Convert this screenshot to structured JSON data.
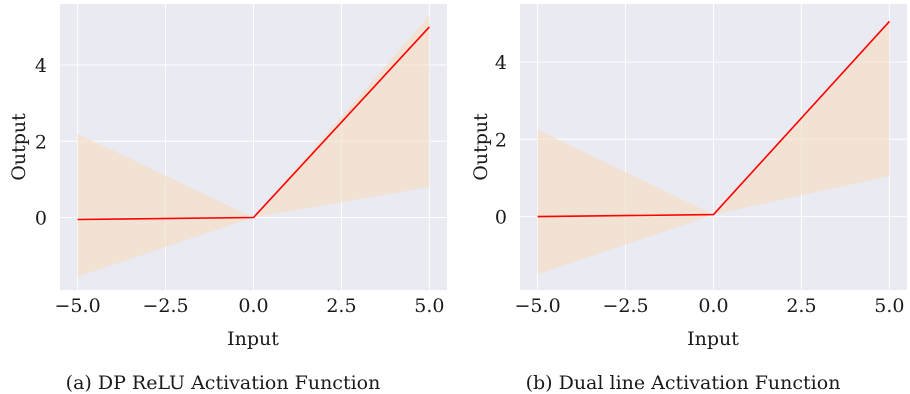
{
  "chart_data": [
    {
      "type": "line",
      "caption": "(a) DP ReLU Activation Function",
      "xlabel": "Input",
      "ylabel": "Output",
      "xlim": [
        -5.5,
        5.5
      ],
      "ylim": [
        -1.9,
        5.6
      ],
      "xticks": [
        -5.0,
        -2.5,
        0.0,
        2.5,
        5.0
      ],
      "xtick_labels": [
        "−5.0",
        "−2.5",
        "0.0",
        "2.5",
        "5.0"
      ],
      "yticks": [
        0,
        2,
        4
      ],
      "ytick_labels": [
        "0",
        "2",
        "4"
      ],
      "grid": true,
      "line": {
        "color": "#ff0000",
        "x": [
          -5.0,
          0.0,
          5.0
        ],
        "y": [
          -0.05,
          0.0,
          5.0
        ]
      },
      "band": {
        "color": "#f5dcc0",
        "x": [
          -5.0,
          0.0,
          5.0
        ],
        "lower": [
          -1.55,
          0.0,
          0.8
        ],
        "upper": [
          2.2,
          0.0,
          5.3
        ]
      }
    },
    {
      "type": "line",
      "caption": "(b) Dual line Activation Function",
      "xlabel": "Input",
      "ylabel": "Output",
      "xlim": [
        -5.5,
        5.5
      ],
      "ylim": [
        -1.9,
        5.5
      ],
      "xticks": [
        -5.0,
        -2.5,
        0.0,
        2.5,
        5.0
      ],
      "xtick_labels": [
        "−5.0",
        "−2.5",
        "0.0",
        "2.5",
        "5.0"
      ],
      "yticks": [
        0,
        2,
        4
      ],
      "ytick_labels": [
        "0",
        "2",
        "4"
      ],
      "grid": true,
      "line": {
        "color": "#ff0000",
        "x": [
          -5.0,
          0.0,
          5.0
        ],
        "y": [
          0.0,
          0.05,
          5.05
        ]
      },
      "band": {
        "color": "#f5dcc0",
        "x": [
          -5.0,
          0.0,
          5.0
        ],
        "lower": [
          -1.5,
          0.05,
          1.05
        ],
        "upper": [
          2.25,
          0.05,
          5.05
        ]
      }
    }
  ]
}
